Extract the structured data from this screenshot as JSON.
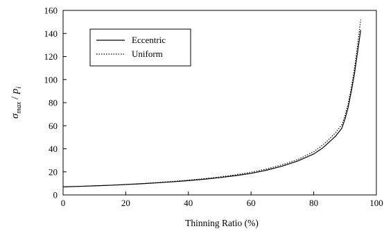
{
  "chart_data": {
    "type": "line",
    "title": "",
    "xlabel": "Thinning Ratio (%)",
    "ylabel": {
      "symbol": "σ",
      "symbol_sub": "max",
      "separator": " / ",
      "symbol2": "p",
      "symbol2_sub": "i"
    },
    "xlim": [
      0,
      100
    ],
    "ylim": [
      0,
      160
    ],
    "xticks": [
      0,
      20,
      40,
      60,
      80,
      100
    ],
    "yticks": [
      0,
      20,
      40,
      60,
      80,
      100,
      120,
      140,
      160
    ],
    "grid": false,
    "legend_position": "top-left",
    "series": [
      {
        "name": "Eccentric",
        "style": "solid",
        "color": "#000000",
        "x": [
          0,
          5,
          10,
          15,
          20,
          25,
          30,
          35,
          40,
          45,
          50,
          55,
          60,
          65,
          70,
          75,
          80,
          83,
          85,
          87,
          89,
          90,
          91,
          92,
          93,
          94,
          95
        ],
        "y": [
          7,
          7.4,
          7.9,
          8.4,
          9,
          9.7,
          10.5,
          11.4,
          12.4,
          13.6,
          15,
          16.7,
          18.7,
          21.5,
          25,
          29.5,
          35.5,
          41,
          46,
          51,
          58,
          66,
          76,
          90,
          105,
          124,
          143
        ]
      },
      {
        "name": "Uniform",
        "style": "dotted",
        "color": "#000000",
        "x": [
          0,
          5,
          10,
          15,
          20,
          25,
          30,
          35,
          40,
          45,
          50,
          55,
          60,
          65,
          70,
          75,
          80,
          83,
          85,
          87,
          89,
          90,
          91,
          92,
          93,
          94,
          95
        ],
        "y": [
          7,
          7.4,
          7.9,
          8.4,
          9.1,
          9.8,
          10.7,
          11.7,
          12.8,
          14.1,
          15.6,
          17.4,
          19.6,
          22.5,
          26.2,
          30.8,
          37.5,
          43.5,
          48.5,
          54,
          61,
          69,
          79,
          93,
          110,
          130,
          152
        ]
      }
    ]
  }
}
